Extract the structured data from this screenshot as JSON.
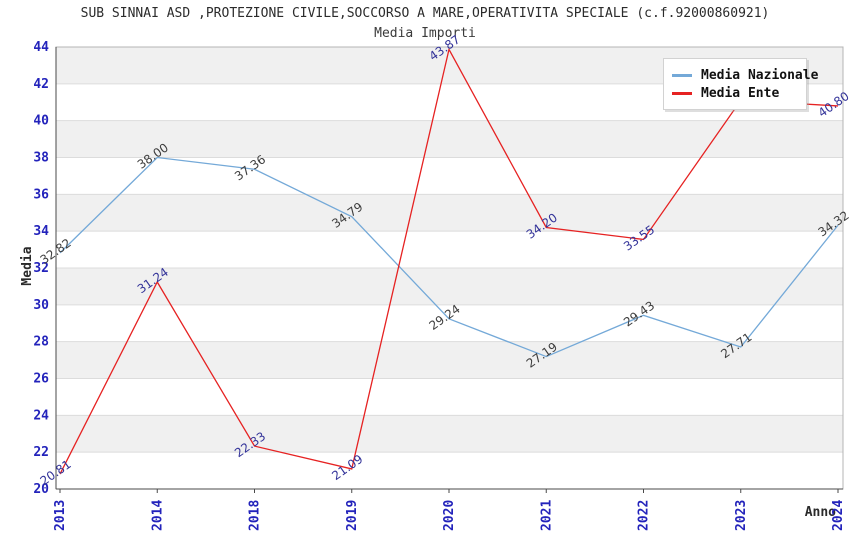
{
  "chart": {
    "title": "SUB SINNAI ASD ,PROTEZIONE CIVILE,SOCCORSO A MARE,OPERATIVITA SPECIALE (c.f.92000860921)",
    "subtitle": "Media Importi",
    "ylabel": "Media",
    "xlabel": "Anno"
  },
  "chart_data": {
    "type": "line",
    "categories": [
      "2013",
      "2014",
      "2018",
      "2019",
      "2020",
      "2021",
      "2022",
      "2023",
      "2024"
    ],
    "ylim": [
      20,
      44
    ],
    "ytick_step": 2,
    "yticks": [
      20,
      22,
      24,
      26,
      28,
      30,
      32,
      34,
      36,
      38,
      40,
      42,
      44
    ],
    "grid": true,
    "banded_background": true,
    "legend_position": "top-right",
    "series": [
      {
        "name": "Media Nazionale",
        "color": "#74a9d8",
        "label_color": "#3d3d3d",
        "values": [
          32.82,
          38.0,
          37.36,
          34.79,
          29.24,
          27.19,
          29.43,
          27.71,
          34.32
        ],
        "labels": [
          "32.82",
          "38.00",
          "37.36",
          "34.79",
          "29.24",
          "27.19",
          "29.43",
          "27.71",
          "34.32"
        ]
      },
      {
        "name": "Media Ente",
        "color": "#e62222",
        "label_color": "#333399",
        "values": [
          20.81,
          31.24,
          22.33,
          21.09,
          43.87,
          34.2,
          33.55,
          41.1,
          40.8
        ],
        "labels": [
          "20.81",
          "31.24",
          "22.33",
          "21.09",
          "43.87",
          "34.20",
          "33.55",
          null,
          "40.80"
        ]
      }
    ]
  },
  "colors": {
    "tick_label": "#2323bb",
    "band": "#f0f0f0",
    "gridline": "#dcdcdc",
    "plot_border": "#b4b4b4",
    "axis": "#4a4a4a"
  }
}
